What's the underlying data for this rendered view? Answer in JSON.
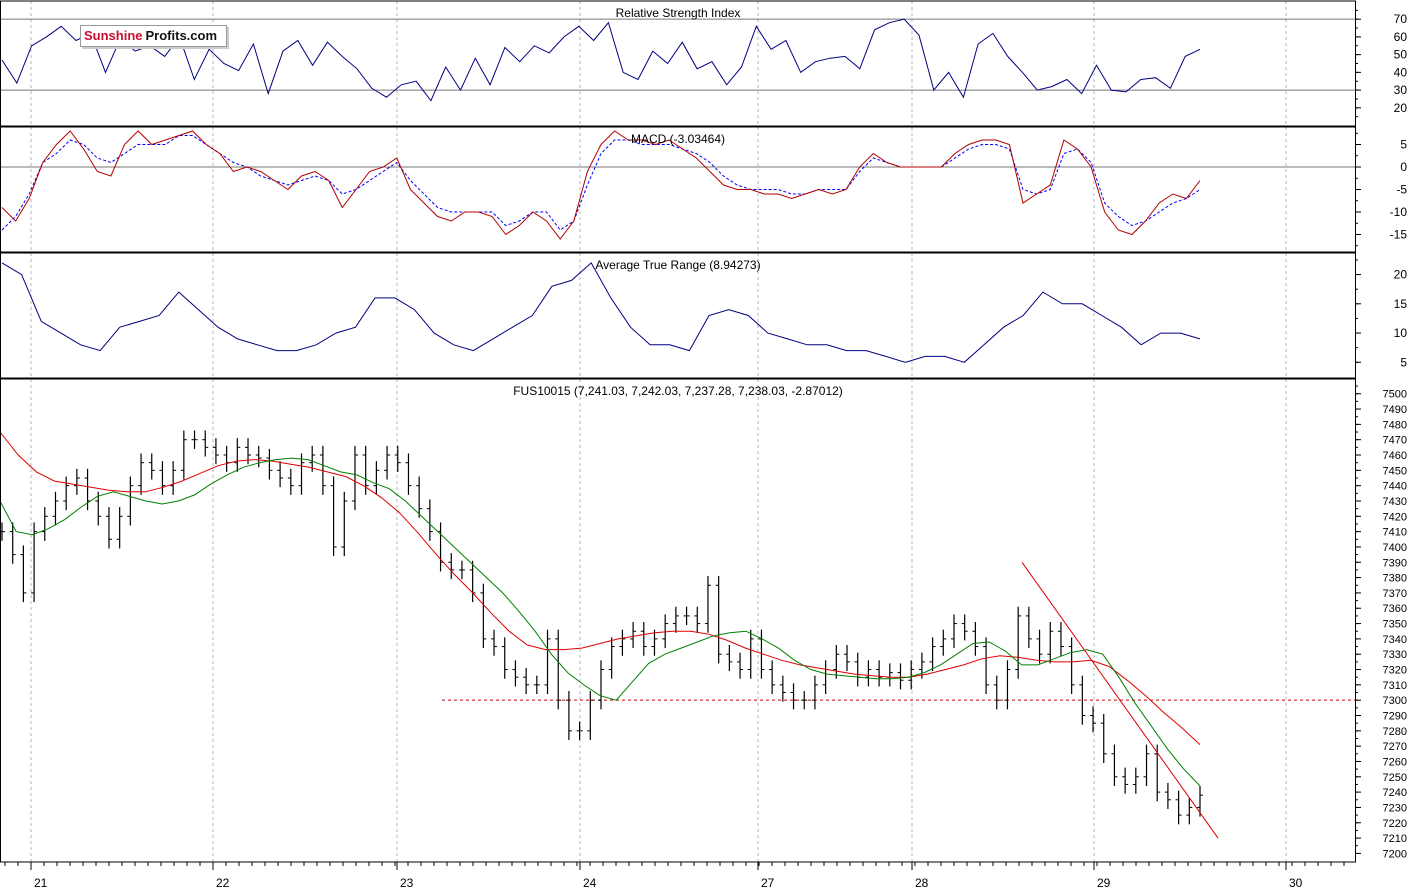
{
  "logo": {
    "part1": "Sunshine",
    "part2": "Profits.com"
  },
  "colors": {
    "price": "#000000",
    "ma_short": "#008000",
    "ma_long": "#dd0000",
    "indicator": "#000080",
    "signal": "#0000ff",
    "macd": "#b00000",
    "level": "#cc0000",
    "trend": "#dd0000"
  },
  "chart_data": [
    {
      "type": "line",
      "title": "Relative Strength Index",
      "ylim": [
        12,
        78
      ],
      "yticks": [
        20,
        30,
        40,
        50,
        60,
        70
      ],
      "levels": [
        30,
        70
      ],
      "grid": true,
      "series": [
        {
          "values": [
            47,
            34,
            55,
            60,
            66,
            58,
            62,
            40,
            59,
            52,
            55,
            49,
            60,
            36,
            53,
            45,
            41,
            56,
            28,
            52,
            58,
            44,
            57,
            49,
            42,
            31,
            26,
            33,
            35,
            24,
            43,
            30,
            48,
            33,
            54,
            46,
            55,
            51,
            60,
            66,
            58,
            68,
            40,
            36,
            52,
            45,
            57,
            42,
            46,
            33,
            43,
            66,
            53,
            58,
            40,
            46,
            48,
            49,
            42,
            64,
            68,
            70,
            61,
            30,
            40,
            26,
            56,
            62,
            49,
            40,
            30,
            32,
            36,
            28,
            44,
            30,
            29,
            36,
            37,
            31,
            49,
            53
          ]
        }
      ]
    },
    {
      "type": "line",
      "title": "MACD (-3.03464)",
      "ylim": [
        -18,
        8
      ],
      "yticks": [
        -15,
        -10,
        -5,
        0,
        5
      ],
      "levels": [
        0
      ],
      "grid": true,
      "series": [
        {
          "values": [
            -9,
            -12,
            -7,
            1,
            5,
            8,
            4,
            -1,
            -2,
            5,
            8,
            5,
            6,
            7,
            8,
            5,
            3,
            -1,
            0,
            -1,
            -3,
            -5,
            -2,
            -1,
            -3,
            -9,
            -5,
            -1,
            0,
            2,
            -5,
            -8,
            -11,
            -12,
            -10,
            -10,
            -11,
            -15,
            -13,
            -10,
            -12,
            -16,
            -12,
            -1,
            5,
            8,
            6,
            6,
            5,
            6,
            4,
            2,
            -1,
            -4,
            -5,
            -5,
            -6,
            -6,
            -7,
            -6,
            -5,
            -6,
            -5,
            0,
            3,
            1,
            0,
            0,
            0,
            0,
            3,
            5,
            6,
            6,
            5,
            -8,
            -6,
            -4,
            6,
            4,
            0,
            -10,
            -14,
            -15,
            -12,
            -8,
            -6,
            -7,
            -3
          ]
        },
        {
          "values": [
            -14,
            -11,
            -6,
            1,
            3,
            6,
            5,
            2,
            1,
            3,
            5,
            5,
            5,
            7,
            7,
            5,
            3,
            1,
            0,
            -2,
            -3,
            -4,
            -3,
            -2,
            -3,
            -6,
            -5,
            -3,
            -1,
            1,
            -3,
            -6,
            -9,
            -10,
            -10,
            -10,
            -10,
            -13,
            -12,
            -10,
            -10,
            -14,
            -12,
            -4,
            3,
            6,
            6,
            5,
            5,
            5,
            4,
            3,
            1,
            -2,
            -4,
            -5,
            -5,
            -5,
            -6,
            -6,
            -5,
            -5,
            -5,
            -1,
            2,
            1,
            0,
            0,
            0,
            0,
            2,
            4,
            5,
            5,
            4,
            -5,
            -6,
            -5,
            3,
            4,
            1,
            -8,
            -11,
            -13,
            -12,
            -10,
            -8,
            -7,
            -5
          ]
        }
      ]
    },
    {
      "type": "line",
      "title": "Average True Range (8.94273)",
      "ylim": [
        3,
        23
      ],
      "yticks": [
        5,
        10,
        15,
        20
      ],
      "grid": true,
      "series": [
        {
          "values": [
            22,
            20,
            12,
            10,
            8,
            7,
            11,
            12,
            13,
            17,
            14,
            11,
            9,
            8,
            7,
            7,
            8,
            10,
            11,
            16,
            16,
            14,
            10,
            8,
            7,
            9,
            11,
            13,
            18,
            19,
            22,
            16,
            11,
            8,
            8,
            7,
            13,
            14,
            13,
            10,
            9,
            8,
            8,
            7,
            7,
            6,
            5,
            6,
            6,
            5,
            8,
            11,
            13,
            17,
            15,
            15,
            13,
            11,
            8,
            10,
            10,
            9
          ]
        }
      ]
    },
    {
      "type": "bar",
      "title": "FUS10015 (7,241.03, 7,242.03, 7,237.28, 7,238.03, -2.87012)",
      "ylim": [
        7197,
        7507
      ],
      "yticks": [
        7200,
        7210,
        7220,
        7230,
        7240,
        7250,
        7260,
        7270,
        7280,
        7290,
        7300,
        7310,
        7320,
        7330,
        7340,
        7350,
        7360,
        7370,
        7380,
        7390,
        7400,
        7410,
        7420,
        7430,
        7440,
        7450,
        7460,
        7470,
        7480,
        7490,
        7500
      ],
      "categories": [
        "21",
        "22",
        "23",
        "24",
        "27",
        "28",
        "29",
        "30"
      ],
      "grid": true,
      "price": [
        7410,
        7395,
        7370,
        7410,
        7420,
        7430,
        7440,
        7445,
        7430,
        7420,
        7405,
        7420,
        7440,
        7455,
        7450,
        7440,
        7450,
        7470,
        7470,
        7465,
        7460,
        7455,
        7465,
        7460,
        7458,
        7450,
        7445,
        7440,
        7455,
        7460,
        7440,
        7400,
        7430,
        7460,
        7440,
        7450,
        7460,
        7455,
        7440,
        7425,
        7410,
        7390,
        7385,
        7385,
        7370,
        7340,
        7335,
        7320,
        7315,
        7310,
        7310,
        7340,
        7300,
        7280,
        7280,
        7300,
        7320,
        7335,
        7340,
        7345,
        7335,
        7340,
        7350,
        7355,
        7355,
        7350,
        7375,
        7330,
        7325,
        7320,
        7340,
        7320,
        7310,
        7305,
        7300,
        7300,
        7310,
        7320,
        7330,
        7325,
        7315,
        7320,
        7315,
        7318,
        7313,
        7320,
        7325,
        7335,
        7340,
        7350,
        7345,
        7335,
        7310,
        7300,
        7320,
        7355,
        7340,
        7330,
        7345,
        7335,
        7310,
        7290,
        7285,
        7265,
        7250,
        7245,
        7250,
        7265,
        7240,
        7235,
        7225,
        7230,
        7238
      ],
      "ma_short": [
        7430,
        7410,
        7408,
        7412,
        7418,
        7426,
        7433,
        7436,
        7433,
        7430,
        7428,
        7430,
        7434,
        7441,
        7447,
        7452,
        7455,
        7457,
        7458,
        7457,
        7453,
        7449,
        7447,
        7442,
        7438,
        7430,
        7420,
        7410,
        7400,
        7390,
        7380,
        7370,
        7358,
        7345,
        7330,
        7318,
        7310,
        7303,
        7300,
        7312,
        7324,
        7330,
        7334,
        7338,
        7342,
        7344,
        7345,
        7340,
        7334,
        7326,
        7320,
        7317,
        7316,
        7315,
        7314,
        7314,
        7315,
        7318,
        7323,
        7330,
        7337,
        7338,
        7332,
        7323,
        7323,
        7327,
        7331,
        7333,
        7330,
        7315,
        7298,
        7283,
        7268,
        7255,
        7244
      ],
      "ma_long": [
        7475,
        7460,
        7449,
        7443,
        7441,
        7439,
        7437,
        7436,
        7436,
        7439,
        7443,
        7448,
        7453,
        7456,
        7457,
        7456,
        7454,
        7452,
        7449,
        7446,
        7440,
        7432,
        7422,
        7409,
        7395,
        7382,
        7370,
        7357,
        7345,
        7336,
        7333,
        7333,
        7334,
        7337,
        7340,
        7342,
        7344,
        7345,
        7345,
        7343,
        7339,
        7334,
        7330,
        7326,
        7323,
        7321,
        7319,
        7317,
        7316,
        7315,
        7315,
        7317,
        7320,
        7323,
        7327,
        7329,
        7328,
        7326,
        7325,
        7325,
        7326,
        7322,
        7313,
        7303,
        7292,
        7282,
        7271
      ],
      "level": 7300,
      "trendline": [
        7390,
        7210
      ]
    }
  ]
}
